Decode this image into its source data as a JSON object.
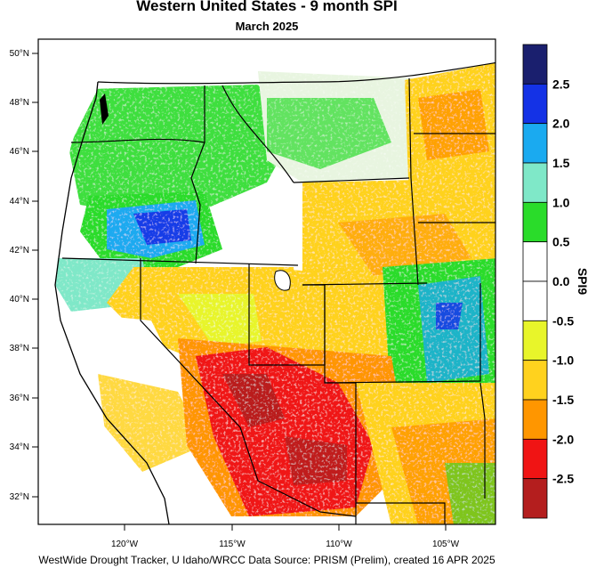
{
  "map": {
    "title": "Western United States - 9 month SPI",
    "subtitle": "March 2025",
    "footer": "WestWide Drought Tracker, U Idaho/WRCC Data Source: PRISM (Prelim), created 16 APR 2025",
    "lat_ticks": [
      "50°N",
      "48°N",
      "46°N",
      "44°N",
      "42°N",
      "40°N",
      "38°N",
      "36°N",
      "34°N",
      "32°N"
    ],
    "lon_ticks": [
      "120°W",
      "115°W",
      "110°W",
      "105°W"
    ]
  },
  "legend": {
    "title": "SPI9",
    "labels": [
      "2.5",
      "2.0",
      "1.5",
      "1.0",
      "0.5",
      "0.0",
      "-0.5",
      "-1.0",
      "-1.5",
      "-2.0",
      "-2.5"
    ],
    "colors": [
      "#1a1f6e",
      "#1432e6",
      "#1aaaf0",
      "#7fe8c8",
      "#2adc2a",
      "#ffffff",
      "#ffffff",
      "#e8f52a",
      "#ffd21e",
      "#ff9600",
      "#f01414",
      "#b41e1e"
    ]
  }
}
